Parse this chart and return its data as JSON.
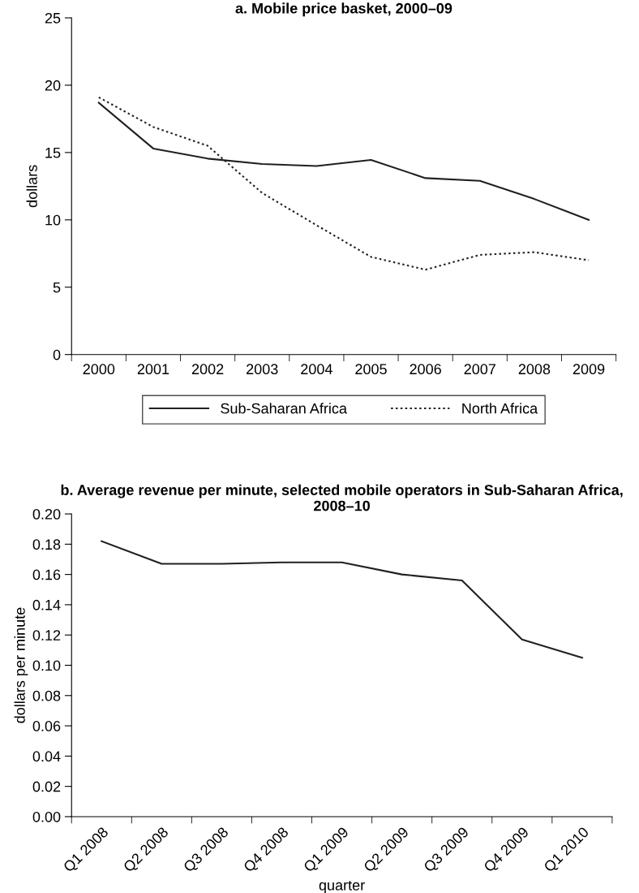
{
  "chart_data": [
    {
      "type": "line",
      "title": "a. Mobile price basket, 2000–09",
      "ylabel": "dollars",
      "categories": [
        "2000",
        "2001",
        "2002",
        "2003",
        "2004",
        "2005",
        "2006",
        "2007",
        "2008",
        "2009"
      ],
      "series": [
        {
          "name": "Sub-Saharan Africa",
          "color": "#231f20",
          "line_style": "solid",
          "values": [
            18.7,
            15.3,
            14.55,
            14.15,
            14.0,
            14.45,
            13.1,
            12.9,
            11.55,
            10.0
          ]
        },
        {
          "name": "North Africa",
          "color": "#231f20",
          "line_style": "dotted",
          "values": [
            19.1,
            16.9,
            15.5,
            12.0,
            9.6,
            7.25,
            6.3,
            7.4,
            7.6,
            7.0
          ]
        }
      ],
      "ylim": [
        0,
        25
      ],
      "yticks": [
        0,
        5,
        10,
        15,
        20,
        25
      ],
      "legend": "bottom",
      "grid": false
    },
    {
      "type": "line",
      "title": "b. Average revenue per minute, selected mobile operators in Sub-Saharan Africa, 2008–10",
      "ylabel": "dollars per minute",
      "xlabel": "quarter",
      "categories": [
        "Q1 2008",
        "Q2 2008",
        "Q3 2008",
        "Q4 2008",
        "Q1 2009",
        "Q2 2009",
        "Q3 2009",
        "Q4 2009",
        "Q1 2010"
      ],
      "series": [
        {
          "color": "#231f20",
          "line_style": "solid",
          "values": [
            0.182,
            0.167,
            0.167,
            0.168,
            0.168,
            0.16,
            0.156,
            0.117,
            0.105
          ]
        }
      ],
      "ylim": [
        0,
        0.2
      ],
      "yticks": [
        {
          "value": 0,
          "label": "0.00"
        },
        {
          "value": 0.02,
          "label": "0.02"
        },
        {
          "value": 0.04,
          "label": "0.04"
        },
        {
          "value": 0.06,
          "label": "0.06"
        },
        {
          "value": 0.08,
          "label": "0.08"
        },
        {
          "value": 0.1,
          "label": "0.10"
        },
        {
          "value": 0.12,
          "label": "0.12"
        },
        {
          "value": 0.14,
          "label": "0.14"
        },
        {
          "value": 0.16,
          "label": "0.16"
        },
        {
          "value": 0.18,
          "label": "0.18"
        },
        {
          "value": 0.2,
          "label": "0.20"
        }
      ],
      "grid": false
    }
  ]
}
